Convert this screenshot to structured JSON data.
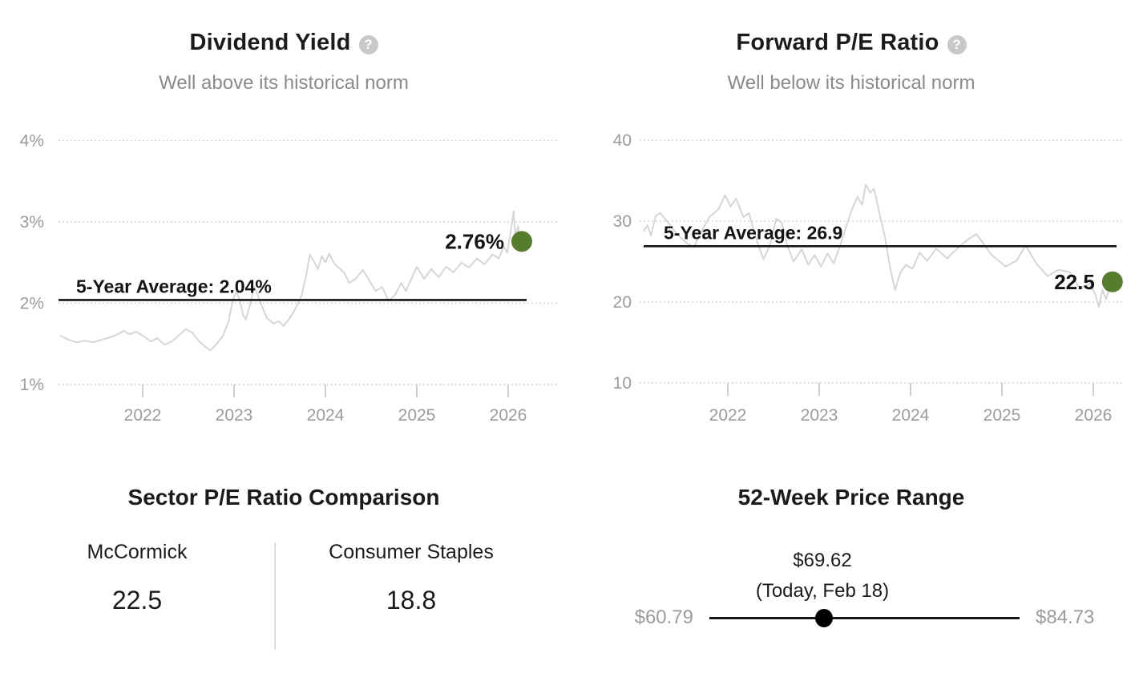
{
  "colors": {
    "title_text": "#1b1b1b",
    "subtitle_text": "#8a8a8a",
    "axis_text": "#9b9b9b",
    "gridline": "#cfcfcf",
    "series_line": "#d6d6d6",
    "average_line": "#141414",
    "current_dot_green": "#567d2d",
    "slider_black": "#000000",
    "help_icon_bg": "#c9c9c9",
    "divider": "#dcdcdc"
  },
  "icons": {
    "help_glyph": "?"
  },
  "chart_data": [
    {
      "type": "line",
      "title": "Dividend Yield",
      "subtitle": "Well above its historical norm",
      "help_icon": "question-mark-icon",
      "grid": "horizontal-dotted",
      "legend": "none",
      "ylim": [
        1,
        4.4
      ],
      "xlim": [
        2021.1,
        2026.3
      ],
      "y_ticks": [
        {
          "value": 4,
          "label": "4%"
        },
        {
          "value": 3,
          "label": "3%"
        },
        {
          "value": 2,
          "label": "2%"
        },
        {
          "value": 1,
          "label": "1%"
        }
      ],
      "x_ticks": [
        {
          "value": 2022,
          "label": "2022"
        },
        {
          "value": 2023,
          "label": "2023"
        },
        {
          "value": 2024,
          "label": "2024"
        },
        {
          "value": 2025,
          "label": "2025"
        },
        {
          "value": 2026,
          "label": "2026"
        }
      ],
      "average": {
        "value": 2.04,
        "label": "5-Year Average: 2.04%"
      },
      "current": {
        "value": 2.76,
        "label": "2.76%"
      },
      "series": [
        {
          "name": "Dividend Yield",
          "x": [
            2021.1,
            2021.19,
            2021.28,
            2021.37,
            2021.46,
            2021.55,
            2021.64,
            2021.73,
            2021.79,
            2021.86,
            2021.93,
            2022.0,
            2022.09,
            2022.16,
            2022.24,
            2022.32,
            2022.41,
            2022.47,
            2022.54,
            2022.61,
            2022.68,
            2022.74,
            2022.81,
            2022.88,
            2022.94,
            2022.97,
            2023.0,
            2023.03,
            2023.07,
            2023.1,
            2023.13,
            2023.18,
            2023.22,
            2023.26,
            2023.31,
            2023.36,
            2023.43,
            2023.49,
            2023.54,
            2023.6,
            2023.68,
            2023.74,
            2023.79,
            2023.83,
            2023.88,
            2023.92,
            2023.96,
            2024.0,
            2024.04,
            2024.09,
            2024.14,
            2024.21,
            2024.26,
            2024.33,
            2024.41,
            2024.48,
            2024.55,
            2024.62,
            2024.69,
            2024.76,
            2024.83,
            2024.88,
            2024.94,
            2025.0,
            2025.08,
            2025.16,
            2025.24,
            2025.32,
            2025.4,
            2025.49,
            2025.57,
            2025.66,
            2025.74,
            2025.83,
            2025.9,
            2025.95,
            2025.99,
            2026.03,
            2026.06,
            2026.08,
            2026.11,
            2026.14
          ],
          "y": [
            1.6,
            1.55,
            1.52,
            1.54,
            1.52,
            1.55,
            1.58,
            1.62,
            1.66,
            1.62,
            1.65,
            1.6,
            1.53,
            1.57,
            1.49,
            1.53,
            1.62,
            1.68,
            1.64,
            1.54,
            1.47,
            1.42,
            1.5,
            1.6,
            1.78,
            1.95,
            2.08,
            2.15,
            2.0,
            1.85,
            1.8,
            2.0,
            2.2,
            2.1,
            1.95,
            1.82,
            1.75,
            1.78,
            1.72,
            1.8,
            1.95,
            2.1,
            2.35,
            2.6,
            2.5,
            2.42,
            2.58,
            2.5,
            2.61,
            2.5,
            2.44,
            2.37,
            2.25,
            2.3,
            2.41,
            2.28,
            2.15,
            2.2,
            2.03,
            2.1,
            2.25,
            2.15,
            2.3,
            2.45,
            2.3,
            2.42,
            2.32,
            2.45,
            2.38,
            2.5,
            2.44,
            2.55,
            2.48,
            2.6,
            2.55,
            2.7,
            2.62,
            2.9,
            3.13,
            2.82,
            2.95,
            2.76
          ]
        }
      ]
    },
    {
      "type": "line",
      "title": "Forward P/E Ratio",
      "subtitle": "Well below its historical norm",
      "help_icon": "question-mark-icon",
      "grid": "horizontal-dotted",
      "legend": "none",
      "ylim": [
        8,
        41
      ],
      "xlim": [
        2021.08,
        2026.3
      ],
      "y_ticks": [
        {
          "value": 40,
          "label": "40"
        },
        {
          "value": 30,
          "label": "30"
        },
        {
          "value": 20,
          "label": "20"
        },
        {
          "value": 10,
          "label": "10"
        }
      ],
      "x_ticks": [
        {
          "value": 2022,
          "label": "2022"
        },
        {
          "value": 2023,
          "label": "2023"
        },
        {
          "value": 2024,
          "label": "2024"
        },
        {
          "value": 2025,
          "label": "2025"
        },
        {
          "value": 2026,
          "label": "2026"
        }
      ],
      "average": {
        "value": 26.9,
        "label": "5-Year Average: 26.9"
      },
      "current": {
        "value": 22.5,
        "label": "22.5"
      },
      "series": [
        {
          "name": "Forward P/E Ratio",
          "x": [
            2021.08,
            2021.12,
            2021.16,
            2021.21,
            2021.26,
            2021.32,
            2021.4,
            2021.48,
            2021.56,
            2021.63,
            2021.7,
            2021.8,
            2021.9,
            2021.97,
            2022.03,
            2022.09,
            2022.17,
            2022.23,
            2022.32,
            2022.39,
            2022.46,
            2022.53,
            2022.59,
            2022.65,
            2022.72,
            2022.81,
            2022.88,
            2022.95,
            2023.02,
            2023.09,
            2023.16,
            2023.23,
            2023.3,
            2023.36,
            2023.42,
            2023.47,
            2023.51,
            2023.56,
            2023.6,
            2023.66,
            2023.72,
            2023.78,
            2023.83,
            2023.89,
            2023.95,
            2024.02,
            2024.1,
            2024.18,
            2024.28,
            2024.4,
            2024.5,
            2024.58,
            2024.65,
            2024.72,
            2024.8,
            2024.88,
            2025.04,
            2025.16,
            2025.26,
            2025.38,
            2025.5,
            2025.62,
            2025.74,
            2025.86,
            2025.96,
            2026.02,
            2026.06,
            2026.1,
            2026.14,
            2026.17,
            2026.2
          ],
          "y": [
            28.8,
            29.5,
            28.2,
            30.6,
            31.0,
            30.2,
            29.0,
            28.0,
            27.2,
            26.8,
            28.5,
            30.5,
            31.5,
            33.2,
            31.8,
            32.8,
            30.5,
            31.0,
            27.5,
            25.3,
            27.0,
            30.3,
            29.8,
            27.0,
            25.0,
            26.5,
            24.6,
            25.8,
            24.4,
            26.0,
            24.8,
            27.0,
            29.5,
            31.5,
            33.0,
            32.0,
            34.5,
            33.5,
            34.0,
            31.0,
            28.0,
            24.0,
            21.5,
            23.7,
            24.6,
            24.1,
            26.1,
            25.1,
            26.6,
            25.4,
            26.5,
            27.3,
            27.9,
            28.4,
            27.2,
            25.9,
            24.4,
            25.1,
            27.0,
            24.7,
            23.2,
            24.0,
            23.7,
            21.6,
            22.3,
            21.0,
            19.4,
            21.5,
            20.3,
            21.6,
            22.5
          ]
        }
      ]
    }
  ],
  "sector_comparison": {
    "title": "Sector P/E Ratio Comparison",
    "items": [
      {
        "label": "McCormick",
        "value": "22.5"
      },
      {
        "label": "Consumer Staples",
        "value": "18.8"
      }
    ]
  },
  "price_range": {
    "title": "52-Week Price Range",
    "current_price": "$69.62",
    "current_note": "(Today, Feb 18)",
    "low": "$60.79",
    "high": "$84.73",
    "low_value": 60.79,
    "high_value": 84.73,
    "current_value": 69.62
  }
}
